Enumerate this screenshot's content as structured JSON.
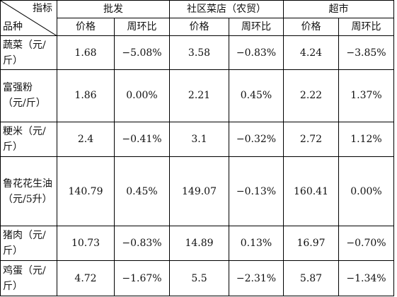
{
  "header": {
    "corner_top": "指标",
    "corner_bottom": "品种",
    "groups": [
      "批发",
      "社区菜店（农贸）",
      "超市"
    ],
    "sub": [
      "价格",
      "周环比",
      "价格",
      "周环比",
      "价格",
      "周环比"
    ]
  },
  "rows": [
    {
      "name": "蔬菜（元/斤）",
      "cells": [
        "1.68",
        "−5.08%",
        "3.58",
        "−0.83%",
        "4.24",
        "−3.85%"
      ]
    },
    {
      "name": "富强粉（元/斤）",
      "cells": [
        "1.86",
        "0.00%",
        "2.21",
        "0.45%",
        "2.22",
        "1.37%"
      ]
    },
    {
      "name": "粳米（元/斤）",
      "cells": [
        "2.4",
        "−0.41%",
        "3.1",
        "−0.32%",
        "2.72",
        "1.12%"
      ]
    },
    {
      "name": "鲁花花生油（元/5升）",
      "cells": [
        "140.79",
        "0.45%",
        "149.07",
        "−0.13%",
        "160.41",
        "0.00%"
      ]
    },
    {
      "name": "猪肉（元/斤）",
      "cells": [
        "10.73",
        "−0.83%",
        "14.89",
        "0.13%",
        "16.97",
        "−0.70%"
      ]
    },
    {
      "name": "鸡蛋（元/斤）",
      "cells": [
        "4.72",
        "−1.67%",
        "5.5",
        "−2.31%",
        "5.87",
        "−1.34%"
      ]
    }
  ]
}
